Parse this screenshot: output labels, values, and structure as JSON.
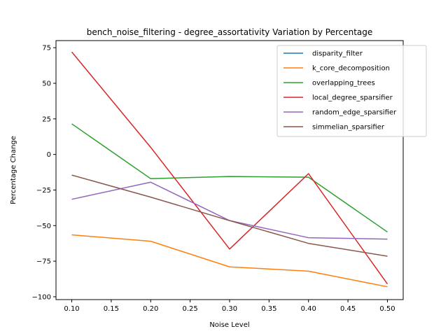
{
  "chart_data": {
    "type": "line",
    "title": "bench_noise_filtering - degree_assortativity Variation by Percentage",
    "xlabel": "Noise Level",
    "ylabel": "Percentage Change",
    "x": [
      0.1,
      0.2,
      0.3,
      0.4,
      0.5
    ],
    "xlim": [
      0.08,
      0.52
    ],
    "ylim": [
      -102,
      80
    ],
    "xticks": [
      "0.10",
      "0.15",
      "0.20",
      "0.25",
      "0.30",
      "0.35",
      "0.40",
      "0.45",
      "0.50"
    ],
    "yticks": [
      "75",
      "50",
      "25",
      "0",
      "−25",
      "−50",
      "−75",
      "−100"
    ],
    "grid": false,
    "legend_position": "top-right",
    "series": [
      {
        "name": "disparity_filter",
        "color": "#1f77b4",
        "values": [
          null,
          null,
          null,
          null,
          null
        ]
      },
      {
        "name": "k_core_decomposition",
        "color": "#ff7f0e",
        "values": [
          -56.5,
          -61,
          -79,
          -82,
          -93
        ]
      },
      {
        "name": "overlapping_trees",
        "color": "#2ca02c",
        "values": [
          21.5,
          -17,
          -15.5,
          -16,
          -54.5
        ]
      },
      {
        "name": "local_degree_sparsifier",
        "color": "#d62728",
        "values": [
          72,
          5,
          -66.5,
          -13.5,
          -91
        ]
      },
      {
        "name": "random_edge_sparsifier",
        "color": "#9467bd",
        "values": [
          -31.5,
          -19.5,
          -46.5,
          -58.5,
          -59.5
        ]
      },
      {
        "name": "simmelian_sparsifier",
        "color": "#8c564b",
        "values": [
          -14.5,
          -30,
          -46.5,
          -62.5,
          -71.5
        ]
      }
    ]
  }
}
